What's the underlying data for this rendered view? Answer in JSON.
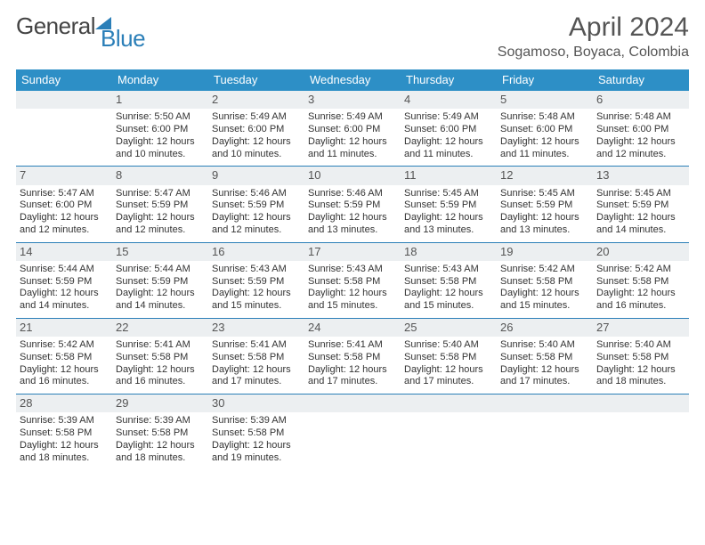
{
  "brand": {
    "text1": "General",
    "text2": "Blue"
  },
  "title": {
    "month": "April 2024",
    "location": "Sogamoso, Boyaca, Colombia"
  },
  "colors": {
    "header_bg": "#2d8fc6",
    "header_text": "#ffffff",
    "daynum_bg": "#eceff1",
    "rule": "#2b7fb8",
    "logo_blue": "#2b7fb8",
    "body_text": "#333333"
  },
  "typography": {
    "title_size": 30,
    "loc_size": 16,
    "header_size": 13,
    "cell_size": 11
  },
  "day_headers": [
    "Sunday",
    "Monday",
    "Tuesday",
    "Wednesday",
    "Thursday",
    "Friday",
    "Saturday"
  ],
  "weeks": [
    [
      {
        "blank": true
      },
      {
        "n": "1",
        "sr": "Sunrise: 5:50 AM",
        "ss": "Sunset: 6:00 PM",
        "d1": "Daylight: 12 hours",
        "d2": "and 10 minutes."
      },
      {
        "n": "2",
        "sr": "Sunrise: 5:49 AM",
        "ss": "Sunset: 6:00 PM",
        "d1": "Daylight: 12 hours",
        "d2": "and 10 minutes."
      },
      {
        "n": "3",
        "sr": "Sunrise: 5:49 AM",
        "ss": "Sunset: 6:00 PM",
        "d1": "Daylight: 12 hours",
        "d2": "and 11 minutes."
      },
      {
        "n": "4",
        "sr": "Sunrise: 5:49 AM",
        "ss": "Sunset: 6:00 PM",
        "d1": "Daylight: 12 hours",
        "d2": "and 11 minutes."
      },
      {
        "n": "5",
        "sr": "Sunrise: 5:48 AM",
        "ss": "Sunset: 6:00 PM",
        "d1": "Daylight: 12 hours",
        "d2": "and 11 minutes."
      },
      {
        "n": "6",
        "sr": "Sunrise: 5:48 AM",
        "ss": "Sunset: 6:00 PM",
        "d1": "Daylight: 12 hours",
        "d2": "and 12 minutes."
      }
    ],
    [
      {
        "n": "7",
        "sr": "Sunrise: 5:47 AM",
        "ss": "Sunset: 6:00 PM",
        "d1": "Daylight: 12 hours",
        "d2": "and 12 minutes."
      },
      {
        "n": "8",
        "sr": "Sunrise: 5:47 AM",
        "ss": "Sunset: 5:59 PM",
        "d1": "Daylight: 12 hours",
        "d2": "and 12 minutes."
      },
      {
        "n": "9",
        "sr": "Sunrise: 5:46 AM",
        "ss": "Sunset: 5:59 PM",
        "d1": "Daylight: 12 hours",
        "d2": "and 12 minutes."
      },
      {
        "n": "10",
        "sr": "Sunrise: 5:46 AM",
        "ss": "Sunset: 5:59 PM",
        "d1": "Daylight: 12 hours",
        "d2": "and 13 minutes."
      },
      {
        "n": "11",
        "sr": "Sunrise: 5:45 AM",
        "ss": "Sunset: 5:59 PM",
        "d1": "Daylight: 12 hours",
        "d2": "and 13 minutes."
      },
      {
        "n": "12",
        "sr": "Sunrise: 5:45 AM",
        "ss": "Sunset: 5:59 PM",
        "d1": "Daylight: 12 hours",
        "d2": "and 13 minutes."
      },
      {
        "n": "13",
        "sr": "Sunrise: 5:45 AM",
        "ss": "Sunset: 5:59 PM",
        "d1": "Daylight: 12 hours",
        "d2": "and 14 minutes."
      }
    ],
    [
      {
        "n": "14",
        "sr": "Sunrise: 5:44 AM",
        "ss": "Sunset: 5:59 PM",
        "d1": "Daylight: 12 hours",
        "d2": "and 14 minutes."
      },
      {
        "n": "15",
        "sr": "Sunrise: 5:44 AM",
        "ss": "Sunset: 5:59 PM",
        "d1": "Daylight: 12 hours",
        "d2": "and 14 minutes."
      },
      {
        "n": "16",
        "sr": "Sunrise: 5:43 AM",
        "ss": "Sunset: 5:59 PM",
        "d1": "Daylight: 12 hours",
        "d2": "and 15 minutes."
      },
      {
        "n": "17",
        "sr": "Sunrise: 5:43 AM",
        "ss": "Sunset: 5:58 PM",
        "d1": "Daylight: 12 hours",
        "d2": "and 15 minutes."
      },
      {
        "n": "18",
        "sr": "Sunrise: 5:43 AM",
        "ss": "Sunset: 5:58 PM",
        "d1": "Daylight: 12 hours",
        "d2": "and 15 minutes."
      },
      {
        "n": "19",
        "sr": "Sunrise: 5:42 AM",
        "ss": "Sunset: 5:58 PM",
        "d1": "Daylight: 12 hours",
        "d2": "and 15 minutes."
      },
      {
        "n": "20",
        "sr": "Sunrise: 5:42 AM",
        "ss": "Sunset: 5:58 PM",
        "d1": "Daylight: 12 hours",
        "d2": "and 16 minutes."
      }
    ],
    [
      {
        "n": "21",
        "sr": "Sunrise: 5:42 AM",
        "ss": "Sunset: 5:58 PM",
        "d1": "Daylight: 12 hours",
        "d2": "and 16 minutes."
      },
      {
        "n": "22",
        "sr": "Sunrise: 5:41 AM",
        "ss": "Sunset: 5:58 PM",
        "d1": "Daylight: 12 hours",
        "d2": "and 16 minutes."
      },
      {
        "n": "23",
        "sr": "Sunrise: 5:41 AM",
        "ss": "Sunset: 5:58 PM",
        "d1": "Daylight: 12 hours",
        "d2": "and 17 minutes."
      },
      {
        "n": "24",
        "sr": "Sunrise: 5:41 AM",
        "ss": "Sunset: 5:58 PM",
        "d1": "Daylight: 12 hours",
        "d2": "and 17 minutes."
      },
      {
        "n": "25",
        "sr": "Sunrise: 5:40 AM",
        "ss": "Sunset: 5:58 PM",
        "d1": "Daylight: 12 hours",
        "d2": "and 17 minutes."
      },
      {
        "n": "26",
        "sr": "Sunrise: 5:40 AM",
        "ss": "Sunset: 5:58 PM",
        "d1": "Daylight: 12 hours",
        "d2": "and 17 minutes."
      },
      {
        "n": "27",
        "sr": "Sunrise: 5:40 AM",
        "ss": "Sunset: 5:58 PM",
        "d1": "Daylight: 12 hours",
        "d2": "and 18 minutes."
      }
    ],
    [
      {
        "n": "28",
        "sr": "Sunrise: 5:39 AM",
        "ss": "Sunset: 5:58 PM",
        "d1": "Daylight: 12 hours",
        "d2": "and 18 minutes."
      },
      {
        "n": "29",
        "sr": "Sunrise: 5:39 AM",
        "ss": "Sunset: 5:58 PM",
        "d1": "Daylight: 12 hours",
        "d2": "and 18 minutes."
      },
      {
        "n": "30",
        "sr": "Sunrise: 5:39 AM",
        "ss": "Sunset: 5:58 PM",
        "d1": "Daylight: 12 hours",
        "d2": "and 19 minutes."
      },
      {
        "blank": true
      },
      {
        "blank": true
      },
      {
        "blank": true
      },
      {
        "blank": true
      }
    ]
  ]
}
